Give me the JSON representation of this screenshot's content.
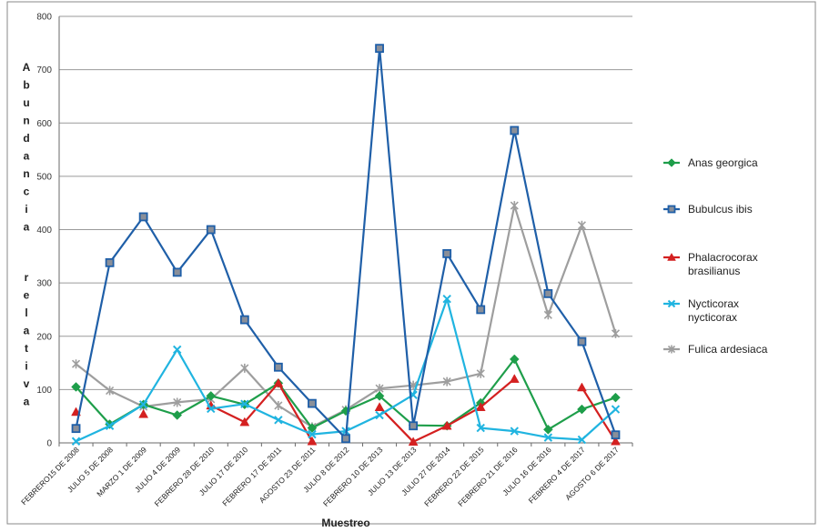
{
  "chart_data": {
    "type": "line",
    "title": "",
    "xlabel": "Muestreo",
    "ylabel": "Abundancia relativa",
    "ylim": [
      0,
      800
    ],
    "yticks": [
      0,
      100,
      200,
      300,
      400,
      500,
      600,
      700,
      800
    ],
    "grid": true,
    "legend_position": "right",
    "categories": [
      "FEBRERO15 DE 2008",
      "JULIO 5 DE 2008",
      "MARZO 1 DE 2009",
      "JULIO 4 DE 2009",
      "FEBRERO 28 DE 2010",
      "JULIO 17 DE 2010",
      "FEBRERO 17 DE 2011",
      "AGOSTO 23 DE 2011",
      "JULIO 8 DE 2012",
      "FEBRERO 10 DE 2013",
      "JULIO 13 DE 2013",
      "JULIO 27 DE 2014",
      "FEBRERO 22 DE 2015",
      "FEBRERO 21 DE 2016",
      "JULIO 16 DE 2016",
      "FEBRERO 4 DE 2017",
      "AGOSTO 6 DE 2017"
    ],
    "series": [
      {
        "name": "Anas georgica",
        "color": "#1e9e4a",
        "marker": "diamond",
        "values": [
          105,
          35,
          72,
          52,
          88,
          72,
          112,
          28,
          60,
          88,
          33,
          32,
          75,
          157,
          25,
          63,
          85
        ]
      },
      {
        "name": "Bubulcus ibis",
        "color": "#1f5fa8",
        "marker": "square",
        "values": [
          27,
          338,
          424,
          320,
          400,
          231,
          142,
          74,
          8,
          740,
          32,
          355,
          250,
          586,
          280,
          190,
          15
        ]
      },
      {
        "name": "Phalacrocorax brasilianus",
        "color": "#d42020",
        "marker": "triangle",
        "values": [
          58,
          null,
          54,
          null,
          70,
          39,
          112,
          3,
          null,
          67,
          2,
          32,
          67,
          120,
          null,
          104,
          3
        ]
      },
      {
        "name": "Nycticorax nycticorax",
        "color": "#20b4e0",
        "marker": "x",
        "values": [
          3,
          32,
          72,
          175,
          64,
          73,
          43,
          16,
          22,
          52,
          90,
          270,
          28,
          22,
          10,
          6,
          63
        ]
      },
      {
        "name": "Fulica ardesiaca",
        "color": "#9e9e9e",
        "marker": "star",
        "values": [
          148,
          98,
          68,
          76,
          82,
          140,
          70,
          30,
          62,
          102,
          108,
          115,
          130,
          445,
          240,
          408,
          205
        ]
      }
    ]
  },
  "legend": {
    "items": [
      {
        "lines": [
          "Anas georgica"
        ]
      },
      {
        "lines": [
          "Bubulcus ibis"
        ]
      },
      {
        "lines": [
          "Phalacrocorax",
          "brasilianus"
        ]
      },
      {
        "lines": [
          "Nycticorax",
          "nycticorax"
        ]
      },
      {
        "lines": [
          "Fulica ardesiaca"
        ]
      }
    ]
  }
}
